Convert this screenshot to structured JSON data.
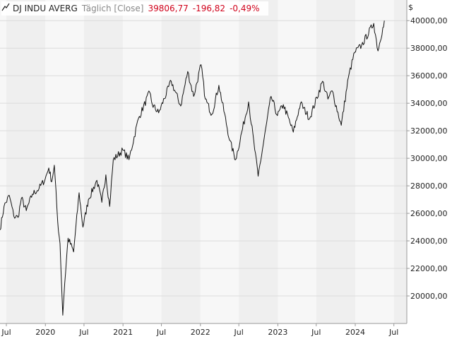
{
  "legend": {
    "symbol": "DJ INDU AVERG",
    "interval": "Täglich [Close]",
    "last": "39806,77",
    "change": "-196,82",
    "change_pct": "-0,49%",
    "icon": "line-chart-icon"
  },
  "axis_currency": "$",
  "colors": {
    "line": "#111111",
    "negative": "#d0021b",
    "band_a": "#efefef",
    "band_b": "#f7f7f7",
    "grid": "#dcdcdc"
  },
  "chart_data": {
    "type": "line",
    "series": [
      {
        "values": [
          [
            "2019-06-01",
            24800
          ],
          [
            "2019-06-20",
            26500
          ],
          [
            "2019-07-15",
            27300
          ],
          [
            "2019-08-05",
            25800
          ],
          [
            "2019-08-25",
            25700
          ],
          [
            "2019-09-10",
            27100
          ],
          [
            "2019-10-03",
            26200
          ],
          [
            "2019-11-01",
            27400
          ],
          [
            "2019-12-02",
            27800
          ],
          [
            "2019-12-31",
            28500
          ],
          [
            "2020-01-17",
            29300
          ],
          [
            "2020-01-31",
            28300
          ],
          [
            "2020-02-12",
            29500
          ],
          [
            "2020-02-28",
            25400
          ],
          [
            "2020-03-10",
            23800
          ],
          [
            "2020-03-23",
            18600
          ],
          [
            "2020-04-01",
            20900
          ],
          [
            "2020-04-17",
            24200
          ],
          [
            "2020-05-13",
            23200
          ],
          [
            "2020-06-08",
            27500
          ],
          [
            "2020-06-26",
            25000
          ],
          [
            "2020-07-22",
            27000
          ],
          [
            "2020-08-31",
            28400
          ],
          [
            "2020-09-23",
            26800
          ],
          [
            "2020-10-12",
            28800
          ],
          [
            "2020-10-30",
            26500
          ],
          [
            "2020-11-16",
            29900
          ],
          [
            "2020-12-31",
            30600
          ],
          [
            "2021-01-29",
            29900
          ],
          [
            "2021-03-15",
            32900
          ],
          [
            "2021-05-07",
            34800
          ],
          [
            "2021-05-19",
            33900
          ],
          [
            "2021-06-18",
            33300
          ],
          [
            "2021-08-16",
            35600
          ],
          [
            "2021-09-30",
            33800
          ],
          [
            "2021-11-02",
            36300
          ],
          [
            "2021-11-30",
            34500
          ],
          [
            "2022-01-04",
            36800
          ],
          [
            "2022-01-24",
            34300
          ],
          [
            "2022-02-24",
            33200
          ],
          [
            "2022-03-29",
            35300
          ],
          [
            "2022-05-19",
            31300
          ],
          [
            "2022-06-16",
            29900
          ],
          [
            "2022-08-16",
            34100
          ],
          [
            "2022-09-30",
            28700
          ],
          [
            "2022-11-30",
            34500
          ],
          [
            "2022-12-30",
            33100
          ],
          [
            "2023-01-27",
            33900
          ],
          [
            "2023-03-15",
            31900
          ],
          [
            "2023-04-18",
            34000
          ],
          [
            "2023-05-31",
            32900
          ],
          [
            "2023-07-31",
            35600
          ],
          [
            "2023-08-25",
            34300
          ],
          [
            "2023-09-14",
            34900
          ],
          [
            "2023-10-27",
            32400
          ],
          [
            "2023-11-30",
            35900
          ],
          [
            "2023-12-29",
            37700
          ],
          [
            "2024-01-31",
            38200
          ],
          [
            "2024-03-28",
            39800
          ],
          [
            "2024-04-17",
            37800
          ],
          [
            "2024-05-10",
            39500
          ],
          [
            "2024-05-17",
            40000
          ]
        ]
      }
    ],
    "x_range": [
      "2019-06-01",
      "2024-08-31"
    ],
    "ylim": [
      18000,
      41500
    ],
    "y_ticks": [
      20000,
      22000,
      24000,
      26000,
      28000,
      30000,
      32000,
      34000,
      36000,
      38000,
      40000
    ],
    "y_tick_labels": [
      "20000,00",
      "22000,00",
      "24000,00",
      "26000,00",
      "28000,00",
      "30000,00",
      "32000,00",
      "34000,00",
      "36000,00",
      "38000,00",
      "40000,00"
    ],
    "x_ticks": [
      {
        "date": "2019-07-01",
        "label": "Jul"
      },
      {
        "date": "2020-01-01",
        "label": "2020"
      },
      {
        "date": "2020-07-01",
        "label": "Jul"
      },
      {
        "date": "2021-01-01",
        "label": "2021"
      },
      {
        "date": "2021-07-01",
        "label": "Jul"
      },
      {
        "date": "2022-01-01",
        "label": "2022"
      },
      {
        "date": "2022-07-01",
        "label": "Jul"
      },
      {
        "date": "2023-01-01",
        "label": "2023"
      },
      {
        "date": "2023-07-01",
        "label": "Jul"
      },
      {
        "date": "2024-01-01",
        "label": "2024"
      },
      {
        "date": "2024-07-01",
        "label": "Jul"
      }
    ],
    "grid": true,
    "legend_position": "top-left",
    "y_axis_position": "right"
  }
}
